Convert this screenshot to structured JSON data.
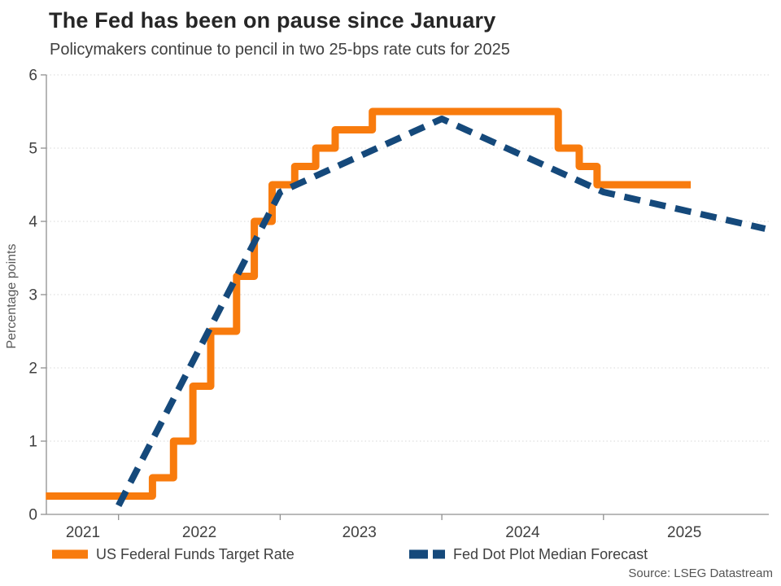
{
  "page": {
    "title": "The Fed has been on pause since January",
    "subtitle": "Policymakers continue to pencil in two 25-bps rate cuts for 2025",
    "source": "Source: LSEG Datastream"
  },
  "colors": {
    "target_rate_orange": "#F87B0D",
    "forecast_navy": "#15497B",
    "grid_line": "#D8D8D8",
    "axis_line": "#909090",
    "tick_text": "#404040",
    "title_text": "#262626",
    "muted_text": "#595959"
  },
  "legend": {
    "items": [
      {
        "label": "US Federal Funds Target Rate",
        "swatch": "solid-line"
      },
      {
        "label": "Fed Dot Plot Median Forecast",
        "swatch": "dashed-line"
      }
    ]
  },
  "chart_data": {
    "type": "line",
    "title": "The Fed has been on pause since January",
    "subtitle": "Policymakers continue to pencil in two 25-bps rate cuts for 2025",
    "xlabel": "",
    "ylabel": "Percentage points",
    "ylim": [
      0,
      6
    ],
    "xlim_years": [
      2021.55,
      2026.0
    ],
    "y_ticks": [
      0,
      1,
      2,
      3,
      4,
      5,
      6
    ],
    "x_ticks_years": [
      2022,
      2023,
      2024,
      2025
    ],
    "x_labels": [
      {
        "text": "2021",
        "x": 2021.78
      },
      {
        "text": "2022",
        "x": 2022.5
      },
      {
        "text": "2023",
        "x": 2023.49
      },
      {
        "text": "2024",
        "x": 2024.5
      },
      {
        "text": "2025",
        "x": 2025.5
      }
    ],
    "grid": "horizontal-dotted",
    "legend_position": "bottom",
    "series": [
      {
        "name": "US Federal Funds Target Rate",
        "style": "step",
        "color": "#F87B0D",
        "points": [
          [
            2021.55,
            0.25
          ],
          [
            2022.21,
            0.5
          ],
          [
            2022.34,
            1.0
          ],
          [
            2022.46,
            1.75
          ],
          [
            2022.57,
            2.5
          ],
          [
            2022.73,
            3.25
          ],
          [
            2022.84,
            4.0
          ],
          [
            2022.95,
            4.5
          ],
          [
            2023.09,
            4.75
          ],
          [
            2023.22,
            5.0
          ],
          [
            2023.34,
            5.25
          ],
          [
            2023.57,
            5.5
          ],
          [
            2024.72,
            5.0
          ],
          [
            2024.85,
            4.75
          ],
          [
            2024.96,
            4.5
          ],
          [
            2025.54,
            4.5
          ]
        ]
      },
      {
        "name": "Fed Dot Plot Median Forecast",
        "style": "dashed",
        "color": "#15497B",
        "points": [
          [
            2022.0,
            0.12
          ],
          [
            2023.0,
            4.4
          ],
          [
            2024.0,
            5.4
          ],
          [
            2025.0,
            4.4
          ],
          [
            2026.0,
            3.9
          ]
        ]
      }
    ]
  }
}
